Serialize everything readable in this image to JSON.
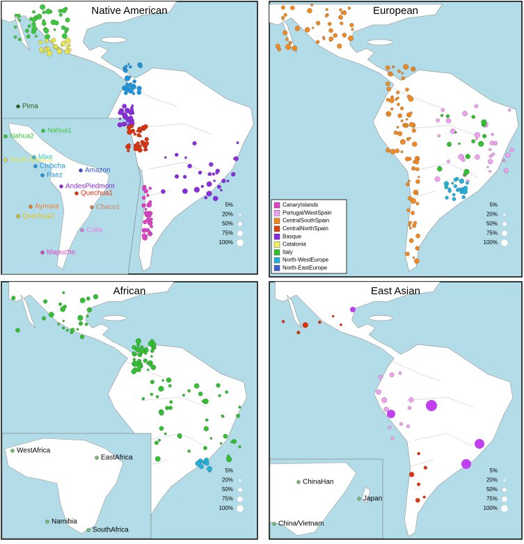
{
  "panels": [
    {
      "title": "Native American",
      "inset_labels": [
        {
          "text": "Pima",
          "color": "#2e5e18"
        },
        {
          "text": "Nahua2",
          "color": "#3cc83c"
        },
        {
          "text": "Nahua1",
          "color": "#3cc83c"
        },
        {
          "text": "South Mexico",
          "color": "#e6e650"
        },
        {
          "text": "Mixe",
          "color": "#2ccfd0"
        },
        {
          "text": "Chibcha",
          "color": "#1a96e0"
        },
        {
          "text": "Paez",
          "color": "#1a96e0"
        },
        {
          "text": "Amazon",
          "color": "#3050c8"
        },
        {
          "text": "AndesPiedmont",
          "color": "#8a2be2"
        },
        {
          "text": "Quechua1",
          "color": "#e0300c"
        },
        {
          "text": "Aymara",
          "color": "#f08030"
        },
        {
          "text": "Chaco1",
          "color": "#d08060"
        },
        {
          "text": "Quechua2",
          "color": "#e8c020"
        },
        {
          "text": "Colla",
          "color": "#e080e0"
        },
        {
          "text": "Mapuche",
          "color": "#e040c8"
        }
      ],
      "size_legend": [
        "5%",
        "20%",
        "50%",
        "75%",
        "100%"
      ]
    },
    {
      "title": "European",
      "legend": [
        {
          "name": "CanaryIslands",
          "color": "#e040c8"
        },
        {
          "name": "Portugal/WestSpain",
          "color": "#f0a0f0"
        },
        {
          "name": "CentralSouthSpain",
          "color": "#f08a20"
        },
        {
          "name": "CentralNorthSpain",
          "color": "#e0400c"
        },
        {
          "name": "Basque",
          "color": "#8a2be2"
        },
        {
          "name": "Catalonia",
          "color": "#f0f060"
        },
        {
          "name": "Italy",
          "color": "#30c030"
        },
        {
          "name": "North-WestEurope",
          "color": "#20b0d8"
        },
        {
          "name": "North-EastEurope",
          "color": "#4060d0"
        }
      ],
      "size_legend": [
        "5%",
        "20%",
        "50%",
        "75%",
        "100%"
      ]
    },
    {
      "title": "African",
      "inset_labels": [
        {
          "text": "WestAfrica",
          "color": "#000000"
        },
        {
          "text": "EastAfrica",
          "color": "#000000"
        },
        {
          "text": "Namibia",
          "color": "#000000"
        },
        {
          "text": "SouthAfrica",
          "color": "#000000"
        }
      ],
      "size_legend": [
        "5%",
        "20%",
        "50%",
        "75%",
        "100%"
      ]
    },
    {
      "title": "East Asian",
      "inset_labels": [
        {
          "text": "ChinaHan",
          "color": "#000000"
        },
        {
          "text": "Japan",
          "color": "#000000"
        },
        {
          "text": "China/Vietnam",
          "color": "#000000"
        }
      ],
      "size_legend": [
        "5%",
        "20%",
        "50%",
        "75%",
        "100%"
      ]
    }
  ]
}
